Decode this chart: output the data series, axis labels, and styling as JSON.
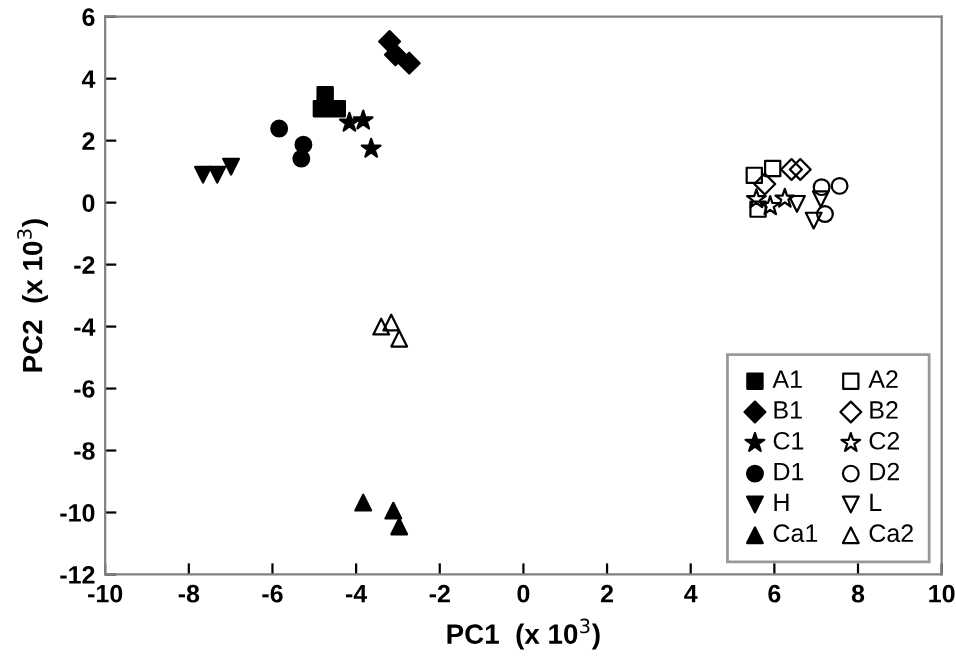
{
  "chart_data": {
    "type": "scatter",
    "xlabel": "PC1  (x 10$^{3}$)",
    "ylabel": "PC2  (x 10$^{3}$)",
    "xlim": [
      -10,
      10
    ],
    "xticks": [
      -10,
      -8,
      -6,
      -4,
      -2,
      0,
      2,
      4,
      6,
      8,
      10
    ],
    "ylim": [
      -12,
      6
    ],
    "yticks": [
      -12,
      -10,
      -8,
      -6,
      -4,
      -2,
      0,
      2,
      4,
      6
    ],
    "grid": false,
    "legend": "bottom right",
    "series": [
      {
        "name": "A1",
        "color": "#000000",
        "marker": "square",
        "x": [
          -4.74,
          -4.83,
          -4.45
        ],
        "values": [
          3.48,
          3.03,
          3.03
        ]
      },
      {
        "name": "B1",
        "color": "#000000",
        "marker": "diamond",
        "x": [
          -3.2,
          -3.06,
          -2.73
        ],
        "values": [
          5.2,
          4.77,
          4.5
        ]
      },
      {
        "name": "C1",
        "color": "#000000",
        "marker": "star",
        "x": [
          -4.16,
          -3.83,
          -3.64
        ],
        "values": [
          2.58,
          2.65,
          1.74
        ]
      },
      {
        "name": "D1",
        "color": "#000000",
        "marker": "circle",
        "x": [
          -5.84,
          -5.26,
          -5.31
        ],
        "values": [
          2.39,
          1.87,
          1.42
        ]
      },
      {
        "name": "H",
        "color": "#000000",
        "marker": "triangle_down",
        "x": [
          -7.66,
          -7.32,
          -6.99
        ],
        "values": [
          0.9,
          0.9,
          1.16
        ]
      },
      {
        "name": "Ca1",
        "color": "#000000",
        "marker": "triangle",
        "x": [
          -3.83,
          -3.11,
          -2.97
        ],
        "values": [
          -9.68,
          -9.94,
          -10.45
        ]
      },
      {
        "name": "A2",
        "color": "#000000",
        "marker": "square-open",
        "x": [
          5.52,
          5.96,
          5.61
        ],
        "values": [
          0.88,
          1.1,
          -0.21
        ]
      },
      {
        "name": "B2",
        "color": "#000000",
        "marker": "diamond-open",
        "x": [
          5.77,
          6.41,
          6.62
        ],
        "values": [
          0.6,
          1.07,
          1.07
        ]
      },
      {
        "name": "C2",
        "color": "#000000",
        "marker": "star-open",
        "x": [
          5.57,
          5.9,
          6.25
        ],
        "values": [
          0.11,
          -0.11,
          0.13
        ]
      },
      {
        "name": "D2",
        "color": "#000000",
        "marker": "circle-open",
        "x": [
          7.13,
          7.56,
          7.21
        ],
        "values": [
          0.5,
          0.54,
          -0.37
        ]
      },
      {
        "name": "L",
        "color": "#000000",
        "marker": "triangle_down-open",
        "x": [
          6.54,
          7.11,
          6.94
        ],
        "values": [
          -0.04,
          0.11,
          -0.58
        ]
      },
      {
        "name": "Ca2",
        "color": "#000000",
        "marker": "triangle-open",
        "x": [
          -3.4,
          -3.16,
          -2.97
        ],
        "values": [
          -4.0,
          -3.87,
          -4.39
        ]
      }
    ]
  }
}
